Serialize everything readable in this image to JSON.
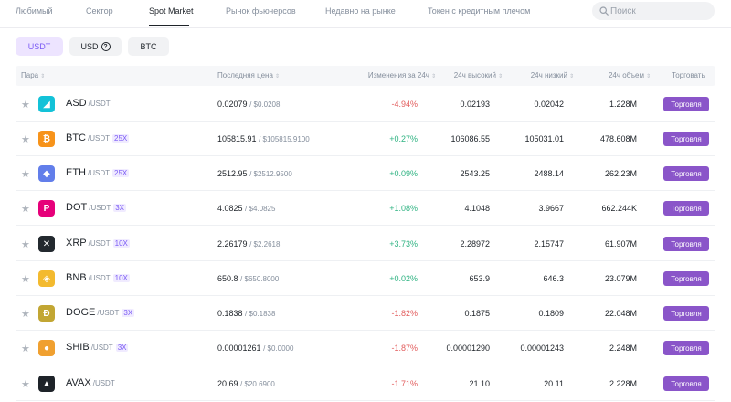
{
  "nav": {
    "tabs": [
      {
        "label": "Любимый",
        "active": false
      },
      {
        "label": "Сектор",
        "active": false
      },
      {
        "label": "Spot Market",
        "active": true
      },
      {
        "label": "Рынок фьючерсов",
        "active": false
      },
      {
        "label": "Недавно на рынке",
        "active": false
      },
      {
        "label": "Токен с кредитным плечом",
        "active": false
      }
    ],
    "search_placeholder": "Поиск"
  },
  "quote_buttons": [
    {
      "label": "USDT",
      "active": true
    },
    {
      "label": "USD",
      "active": false,
      "has_help_icon": true
    },
    {
      "label": "BTC",
      "active": false
    }
  ],
  "table": {
    "headers": {
      "pair": "Пара",
      "last_price": "Последняя цена",
      "change": "Изменения за 24ч",
      "high": "24ч высокий",
      "low": "24ч низкий",
      "volume": "24ч объем",
      "trade": "Торговать"
    },
    "trade_label": "Торговля",
    "rows": [
      {
        "symbol": "ASD",
        "quote": "/USDT",
        "leverage": "",
        "icon": "asd-icon",
        "icon_bg": "#13c2d8",
        "icon_glyph": "◢",
        "price": "0.02079",
        "price_usd": "/ $0.0208",
        "change": "-4.94%",
        "direction": "neg",
        "high": "0.02193",
        "low": "0.02042",
        "volume": "1.228M"
      },
      {
        "symbol": "BTC",
        "quote": "/USDT",
        "leverage": "25X",
        "icon": "bitcoin-icon",
        "icon_bg": "#f7931a",
        "icon_glyph": "₿",
        "price": "105815.91",
        "price_usd": "/ $105815.9100",
        "change": "+0.27%",
        "direction": "pos",
        "high": "106086.55",
        "low": "105031.01",
        "volume": "478.608M"
      },
      {
        "symbol": "ETH",
        "quote": "/USDT",
        "leverage": "25X",
        "icon": "ethereum-icon",
        "icon_bg": "#627eea",
        "icon_glyph": "◆",
        "price": "2512.95",
        "price_usd": "/ $2512.9500",
        "change": "+0.09%",
        "direction": "pos",
        "high": "2543.25",
        "low": "2488.14",
        "volume": "262.23M"
      },
      {
        "symbol": "DOT",
        "quote": "/USDT",
        "leverage": "3X",
        "icon": "polkadot-icon",
        "icon_bg": "#e6007a",
        "icon_glyph": "P",
        "price": "4.0825",
        "price_usd": "/ $4.0825",
        "change": "+1.08%",
        "direction": "pos",
        "high": "4.1048",
        "low": "3.9667",
        "volume": "662.244K"
      },
      {
        "symbol": "XRP",
        "quote": "/USDT",
        "leverage": "10X",
        "icon": "xrp-icon",
        "icon_bg": "#23292f",
        "icon_glyph": "✕",
        "price": "2.26179",
        "price_usd": "/ $2.2618",
        "change": "+3.73%",
        "direction": "pos",
        "high": "2.28972",
        "low": "2.15747",
        "volume": "61.907M"
      },
      {
        "symbol": "BNB",
        "quote": "/USDT",
        "leverage": "10X",
        "icon": "bnb-icon",
        "icon_bg": "#f3ba2f",
        "icon_glyph": "◈",
        "price": "650.8",
        "price_usd": "/ $650.8000",
        "change": "+0.02%",
        "direction": "pos",
        "high": "653.9",
        "low": "646.3",
        "volume": "23.079M"
      },
      {
        "symbol": "DOGE",
        "quote": "/USDT",
        "leverage": "3X",
        "icon": "dogecoin-icon",
        "icon_bg": "#c2a633",
        "icon_glyph": "Ð",
        "price": "0.1838",
        "price_usd": "/ $0.1838",
        "change": "-1.82%",
        "direction": "neg",
        "high": "0.1875",
        "low": "0.1809",
        "volume": "22.048M"
      },
      {
        "symbol": "SHIB",
        "quote": "/USDT",
        "leverage": "3X",
        "icon": "shiba-icon",
        "icon_bg": "#f0a030",
        "icon_glyph": "●",
        "price": "0.00001261",
        "price_usd": "/ $0.0000",
        "change": "-1.87%",
        "direction": "neg",
        "high": "0.00001290",
        "low": "0.00001243",
        "volume": "2.248M"
      },
      {
        "symbol": "AVAX",
        "quote": "/USDT",
        "leverage": "",
        "icon": "avalanche-icon",
        "icon_bg": "#1e2329",
        "icon_glyph": "▲",
        "price": "20.69",
        "price_usd": "/ $20.6900",
        "change": "-1.71%",
        "direction": "neg",
        "high": "21.10",
        "low": "20.11",
        "volume": "2.228M"
      }
    ]
  },
  "colors": {
    "accent": "#8a55c9",
    "positive": "#2fb382",
    "negative": "#e25c5c",
    "active_quote_bg": "#ede4ff",
    "active_quote_text": "#7a5af5"
  }
}
